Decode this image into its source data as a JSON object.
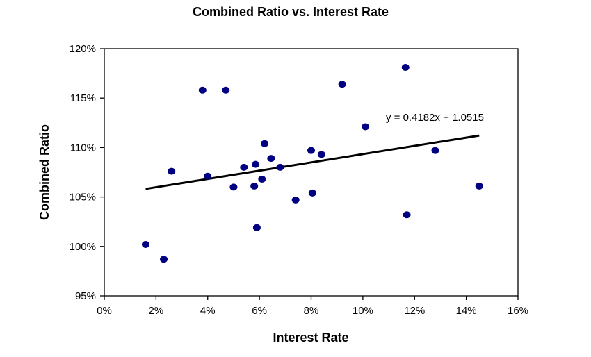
{
  "chart_data": {
    "type": "scatter",
    "title": "Combined Ratio vs. Interest Rate",
    "xlabel": "Interest Rate",
    "ylabel": "Combined Ratio",
    "xlim": [
      0,
      0.16
    ],
    "ylim": [
      0.95,
      1.2
    ],
    "xticks": [
      0,
      0.02,
      0.04,
      0.06,
      0.08,
      0.1,
      0.12,
      0.14,
      0.16
    ],
    "xtick_labels": [
      "0%",
      "2%",
      "4%",
      "6%",
      "8%",
      "10%",
      "12%",
      "14%",
      "16%"
    ],
    "yticks": [
      0.95,
      1.0,
      1.05,
      1.1,
      1.15,
      1.2
    ],
    "ytick_labels": [
      "95%",
      "100%",
      "105%",
      "110%",
      "115%",
      "120%"
    ],
    "grid": false,
    "legend": "none",
    "marker_color": "#000080",
    "series": [
      {
        "name": "Combined Ratio",
        "x": [
          0.016,
          0.023,
          0.026,
          0.038,
          0.04,
          0.047,
          0.05,
          0.054,
          0.058,
          0.0585,
          0.059,
          0.061,
          0.062,
          0.0645,
          0.068,
          0.074,
          0.08,
          0.0805,
          0.084,
          0.092,
          0.101,
          0.1165,
          0.117,
          0.128,
          0.145
        ],
        "y": [
          1.002,
          0.987,
          1.076,
          1.158,
          1.071,
          1.158,
          1.06,
          1.08,
          1.061,
          1.083,
          1.019,
          1.068,
          1.104,
          1.089,
          1.08,
          1.047,
          1.097,
          1.054,
          1.093,
          1.164,
          1.121,
          1.181,
          1.032,
          1.097,
          1.061
        ]
      }
    ],
    "trendline": {
      "slope": 0.4182,
      "intercept": 1.0515,
      "x_range": [
        0.016,
        0.145
      ],
      "equation_label": "y = 0.4182x + 1.0515"
    }
  }
}
